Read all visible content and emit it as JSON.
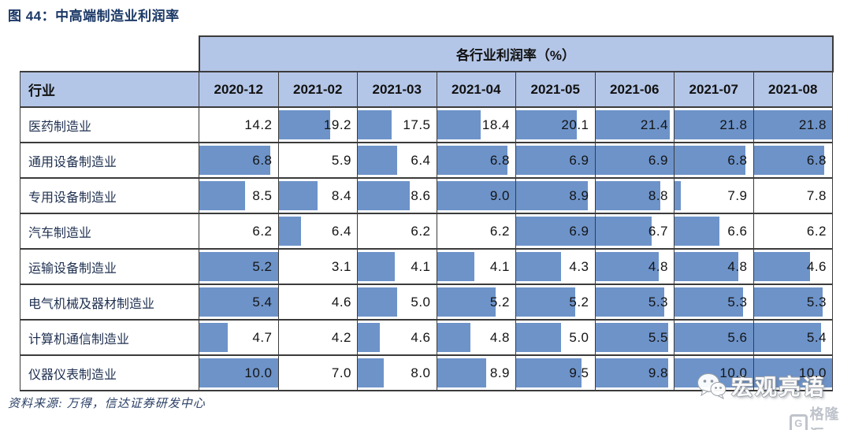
{
  "title": "图 44：中高端制造业利润率",
  "source": "资料来源: 万得，信达证券研发中心",
  "watermark": {
    "wechat_text": "宏观亮语",
    "gelonghui_icon": "G",
    "gelonghui_text": "格隆汇"
  },
  "colors": {
    "header_bg": "#b4c6e7",
    "bar": "#6d93c9",
    "border": "#3b3b3b",
    "title_navy": "#1b3866"
  },
  "chart_data": {
    "type": "table",
    "title": "各行业利润率（%）",
    "row_header": "行业",
    "columns": [
      "2020-12",
      "2021-02",
      "2021-03",
      "2021-04",
      "2021-05",
      "2021-06",
      "2021-07",
      "2021-08"
    ],
    "rows": [
      {
        "industry": "医药制造业",
        "values": [
          14.2,
          19.2,
          17.5,
          18.4,
          20.1,
          21.4,
          21.8,
          21.8
        ]
      },
      {
        "industry": "通用设备制造业",
        "values": [
          6.8,
          5.9,
          6.4,
          6.8,
          6.9,
          6.9,
          6.8,
          6.8
        ]
      },
      {
        "industry": "专用设备制造业",
        "values": [
          8.5,
          8.4,
          8.6,
          9.0,
          8.9,
          8.8,
          7.9,
          7.8
        ]
      },
      {
        "industry": "汽车制造业",
        "values": [
          6.2,
          6.4,
          6.2,
          6.2,
          6.9,
          6.7,
          6.6,
          6.2
        ]
      },
      {
        "industry": "运输设备制造业",
        "values": [
          5.2,
          3.1,
          4.1,
          4.1,
          4.3,
          4.8,
          4.8,
          4.6
        ]
      },
      {
        "industry": "电气机械及器材制造业",
        "values": [
          5.4,
          4.6,
          5.0,
          5.2,
          5.2,
          5.3,
          5.3,
          5.3
        ]
      },
      {
        "industry": "计算机通信制造业",
        "values": [
          4.7,
          4.2,
          4.6,
          4.8,
          5.0,
          5.5,
          5.6,
          5.4
        ]
      },
      {
        "industry": "仪器仪表制造业",
        "values": [
          10.0,
          7.0,
          8.0,
          8.9,
          9.5,
          9.8,
          10.0,
          10.0
        ]
      }
    ],
    "bar_scaling": "per-row: min value = no bar, max value = full-width bar",
    "value_format": "one decimal place"
  }
}
